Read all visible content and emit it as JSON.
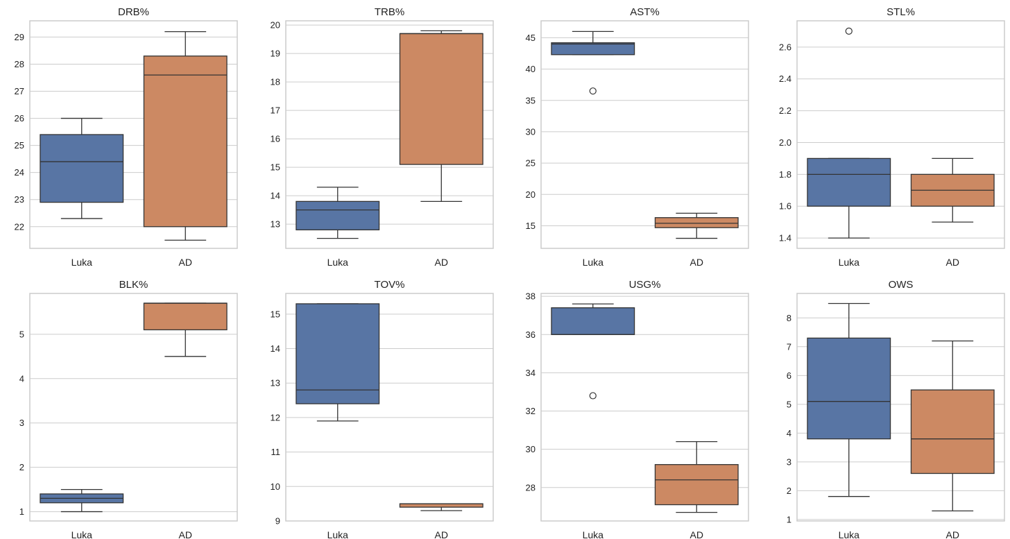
{
  "colors": {
    "series": [
      "#5875A4",
      "#CC8963"
    ],
    "grid": "#CCCCCC",
    "spine": "#CCCCCC",
    "line": "#333333"
  },
  "chart_data": [
    {
      "type": "box",
      "title": "DRB%",
      "categories": [
        "Luka",
        "AD"
      ],
      "ylim": [
        21.2,
        29.6
      ],
      "yticks": [
        22,
        23,
        24,
        25,
        26,
        27,
        28,
        29
      ],
      "boxes": [
        {
          "name": "Luka",
          "whisker_low": 22.3,
          "q1": 22.9,
          "median": 24.4,
          "q3": 25.4,
          "whisker_high": 26.0,
          "outliers": []
        },
        {
          "name": "AD",
          "whisker_low": 21.5,
          "q1": 22.0,
          "median": 27.6,
          "q3": 28.3,
          "whisker_high": 29.2,
          "outliers": []
        }
      ]
    },
    {
      "type": "box",
      "title": "TRB%",
      "categories": [
        "Luka",
        "AD"
      ],
      "ylim": [
        12.15,
        20.15
      ],
      "yticks": [
        13,
        14,
        15,
        16,
        17,
        18,
        19,
        20
      ],
      "boxes": [
        {
          "name": "Luka",
          "whisker_low": 12.5,
          "q1": 12.8,
          "median": 13.5,
          "q3": 13.8,
          "whisker_high": 14.3,
          "outliers": []
        },
        {
          "name": "AD",
          "whisker_low": 13.8,
          "q1": 15.1,
          "median": 19.7,
          "q3": 19.7,
          "whisker_high": 19.8,
          "outliers": []
        }
      ]
    },
    {
      "type": "box",
      "title": "AST%",
      "categories": [
        "Luka",
        "AD"
      ],
      "ylim": [
        11.4,
        47.7
      ],
      "yticks": [
        15,
        20,
        25,
        30,
        35,
        40,
        45
      ],
      "boxes": [
        {
          "name": "Luka",
          "whisker_low": 42.3,
          "q1": 42.3,
          "median": 44.0,
          "q3": 44.2,
          "whisker_high": 46.0,
          "outliers": [
            36.5
          ]
        },
        {
          "name": "AD",
          "whisker_low": 13.0,
          "q1": 14.7,
          "median": 15.4,
          "q3": 16.3,
          "whisker_high": 17.0,
          "outliers": []
        }
      ]
    },
    {
      "type": "box",
      "title": "STL%",
      "categories": [
        "Luka",
        "AD"
      ],
      "ylim": [
        1.335,
        2.765
      ],
      "yticks": [
        1.4,
        1.6,
        1.8,
        2.0,
        2.2,
        2.4,
        2.6
      ],
      "tick_decimals": 1,
      "boxes": [
        {
          "name": "Luka",
          "whisker_low": 1.4,
          "q1": 1.6,
          "median": 1.8,
          "q3": 1.9,
          "whisker_high": 1.9,
          "outliers": [
            2.7
          ]
        },
        {
          "name": "AD",
          "whisker_low": 1.5,
          "q1": 1.6,
          "median": 1.7,
          "q3": 1.8,
          "whisker_high": 1.9,
          "outliers": []
        }
      ]
    },
    {
      "type": "box",
      "title": "BLK%",
      "categories": [
        "Luka",
        "AD"
      ],
      "ylim": [
        0.79,
        5.92
      ],
      "yticks": [
        1,
        2,
        3,
        4,
        5
      ],
      "boxes": [
        {
          "name": "Luka",
          "whisker_low": 1.0,
          "q1": 1.2,
          "median": 1.3,
          "q3": 1.4,
          "whisker_high": 1.5,
          "outliers": []
        },
        {
          "name": "AD",
          "whisker_low": 4.5,
          "q1": 5.1,
          "median": 5.7,
          "q3": 5.7,
          "whisker_high": 5.7,
          "outliers": []
        }
      ]
    },
    {
      "type": "box",
      "title": "TOV%",
      "categories": [
        "Luka",
        "AD"
      ],
      "ylim": [
        9.0,
        15.6
      ],
      "yticks": [
        9,
        10,
        11,
        12,
        13,
        14,
        15
      ],
      "boxes": [
        {
          "name": "Luka",
          "whisker_low": 11.9,
          "q1": 12.4,
          "median": 12.8,
          "q3": 15.3,
          "whisker_high": 15.3,
          "outliers": []
        },
        {
          "name": "AD",
          "whisker_low": 9.3,
          "q1": 9.4,
          "median": 9.5,
          "q3": 9.5,
          "whisker_high": 9.5,
          "outliers": []
        }
      ]
    },
    {
      "type": "box",
      "title": "USG%",
      "categories": [
        "Luka",
        "AD"
      ],
      "ylim": [
        26.25,
        38.15
      ],
      "yticks": [
        28,
        30,
        32,
        34,
        36,
        38
      ],
      "boxes": [
        {
          "name": "Luka",
          "whisker_low": 36.0,
          "q1": 36.0,
          "median": 36.0,
          "q3": 37.4,
          "whisker_high": 37.6,
          "outliers": [
            32.8
          ]
        },
        {
          "name": "AD",
          "whisker_low": 26.7,
          "q1": 27.1,
          "median": 28.4,
          "q3": 29.2,
          "whisker_high": 30.4,
          "outliers": []
        }
      ]
    },
    {
      "type": "box",
      "title": "OWS",
      "categories": [
        "Luka",
        "AD"
      ],
      "ylim": [
        0.95,
        8.85
      ],
      "yticks": [
        1,
        2,
        3,
        4,
        5,
        6,
        7,
        8
      ],
      "boxes": [
        {
          "name": "Luka",
          "whisker_low": 1.8,
          "q1": 3.8,
          "median": 5.1,
          "q3": 7.3,
          "whisker_high": 8.5,
          "outliers": []
        },
        {
          "name": "AD",
          "whisker_low": 1.3,
          "q1": 2.6,
          "median": 3.8,
          "q3": 5.5,
          "whisker_high": 7.2,
          "outliers": []
        }
      ]
    }
  ]
}
